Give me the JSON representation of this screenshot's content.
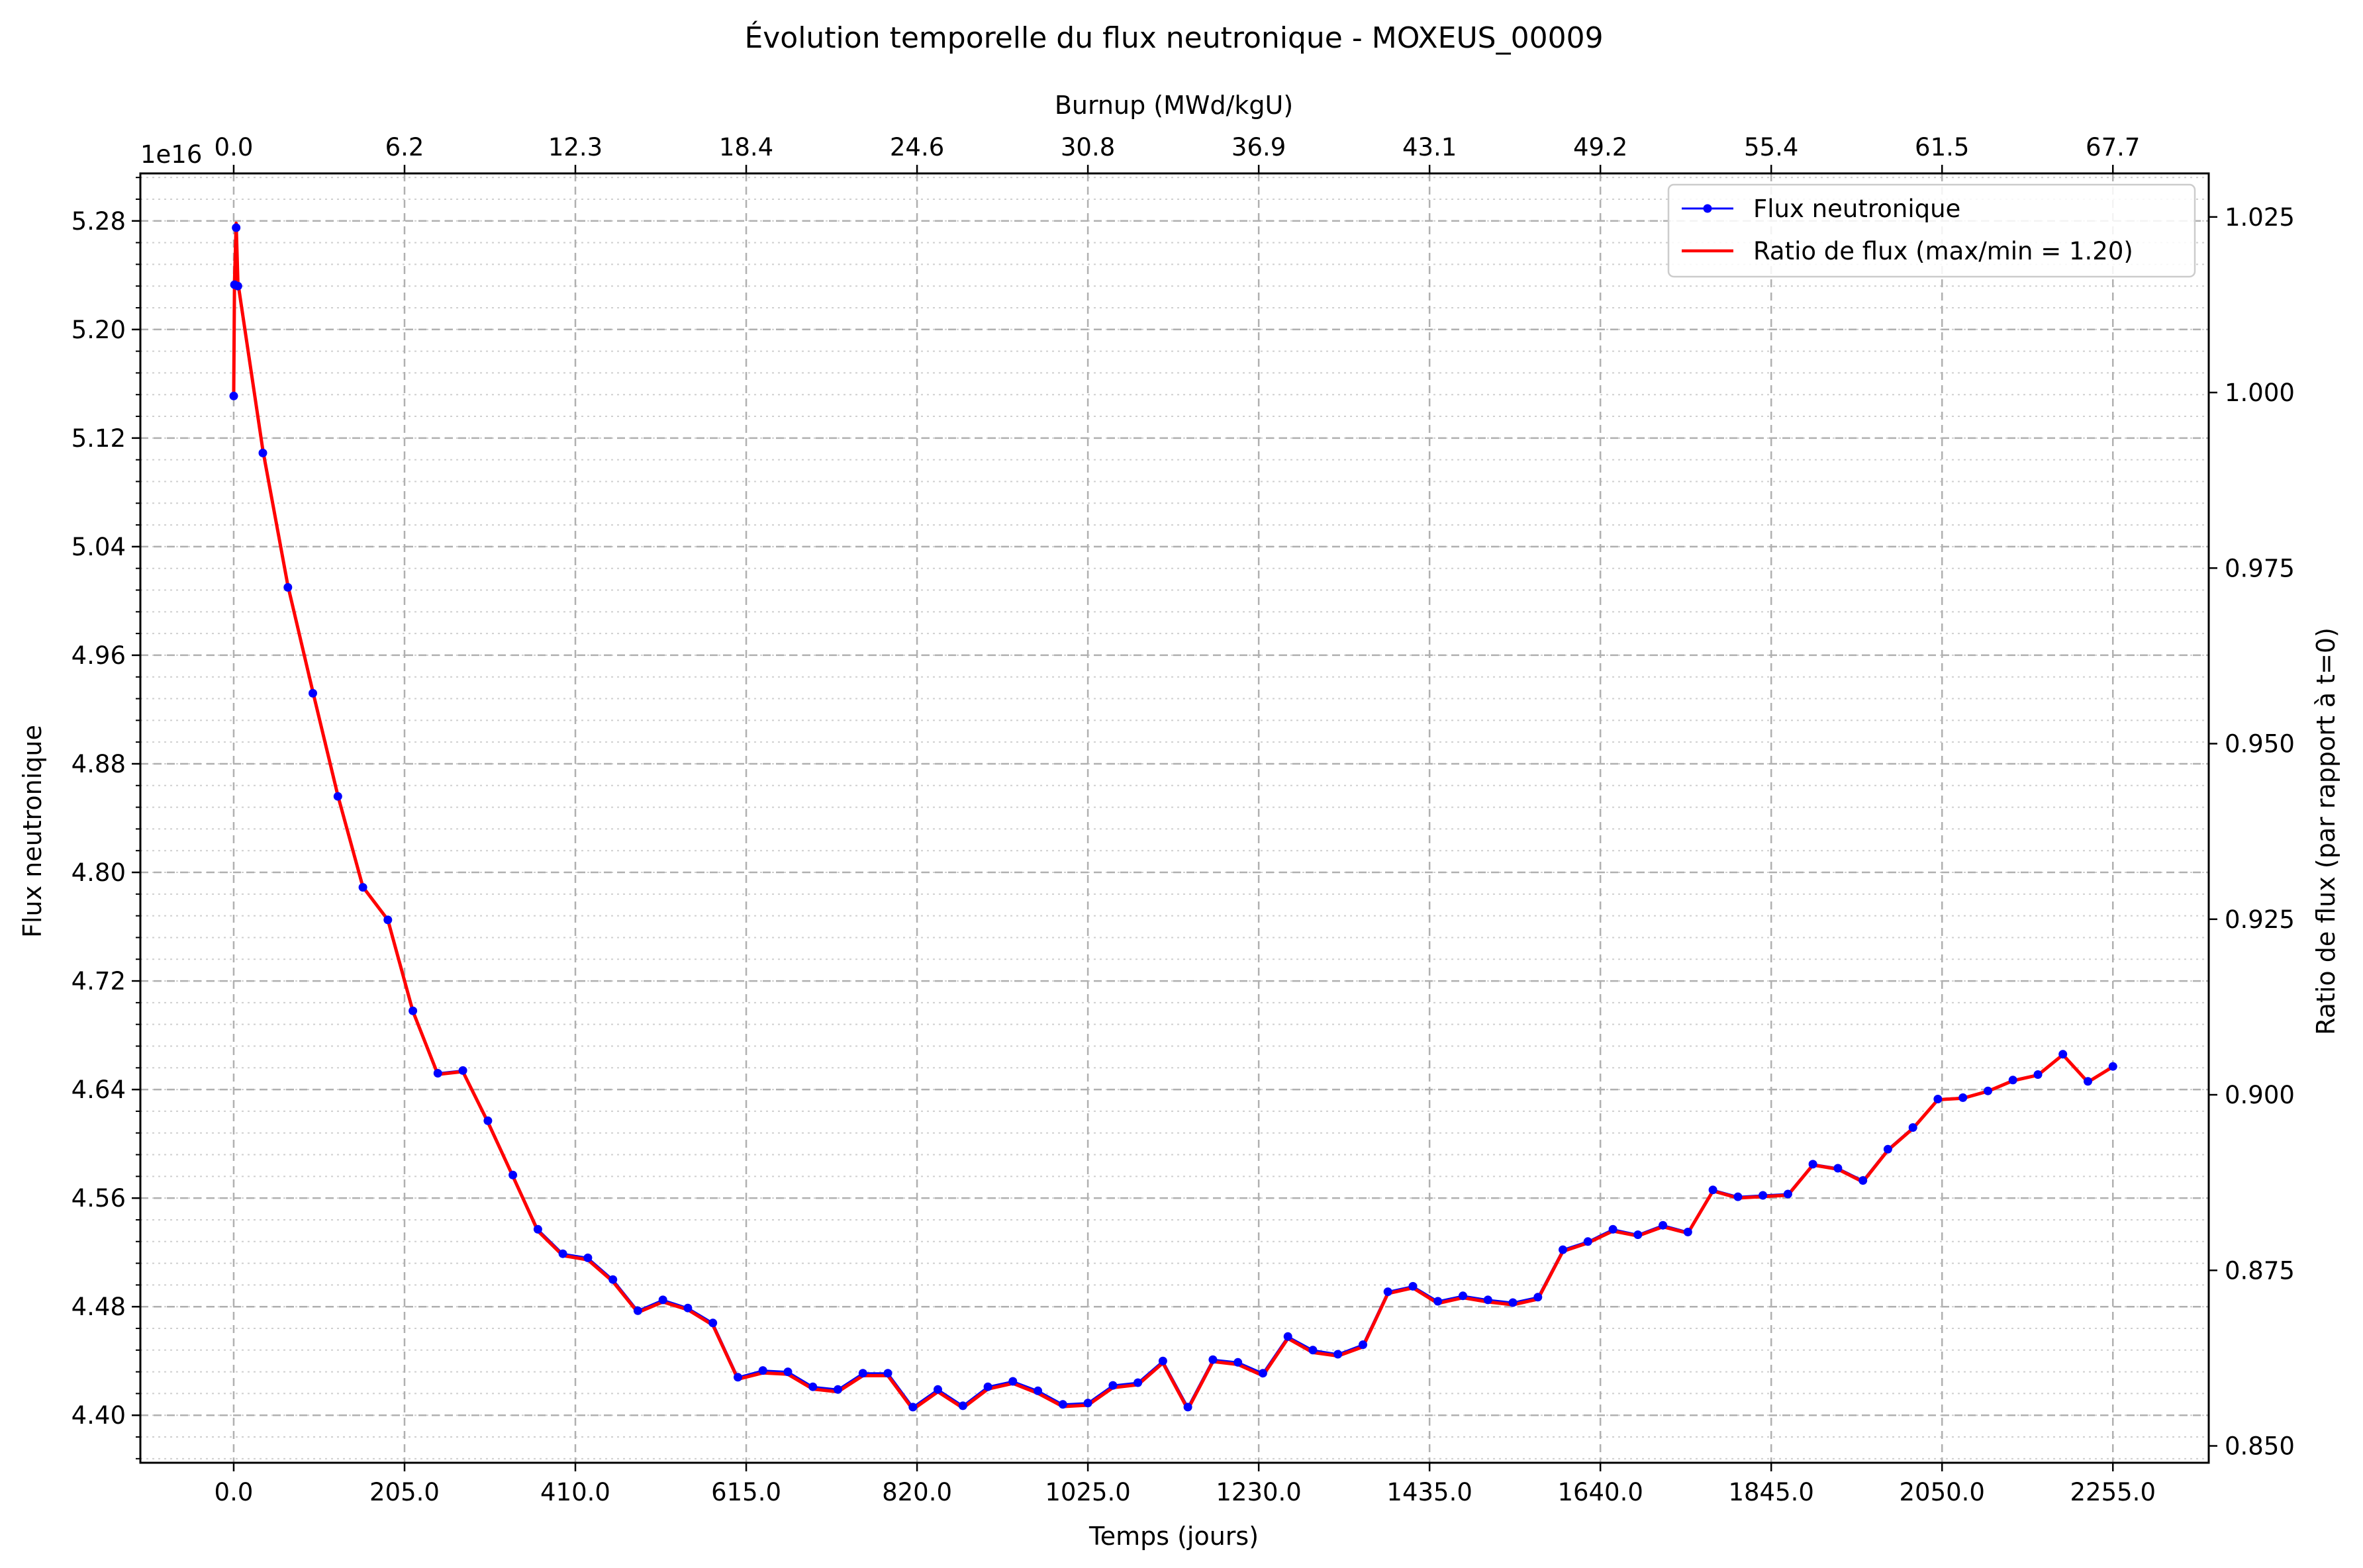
{
  "chart_data": {
    "type": "line",
    "title": "Évolution temporelle du flux neutronique - MOXEUS_00009",
    "xlabel": "Temps (jours)",
    "ylabel": "Flux neutronique",
    "y_offset_label": "1e16",
    "y2label": "Ratio de flux (par rapport à t=0)",
    "top_xlabel": "Burnup (MWd/kgU)",
    "xlim": [
      -112,
      2370
    ],
    "ylim": [
      4.365,
      5.315
    ],
    "y2lim": [
      0.8476,
      1.0312
    ],
    "x_ticks": [
      "0.0",
      "205.0",
      "410.0",
      "615.0",
      "820.0",
      "1025.0",
      "1230.0",
      "1435.0",
      "1640.0",
      "1845.0",
      "2050.0",
      "2255.0"
    ],
    "x_tick_values": [
      0,
      205,
      410,
      615,
      820,
      1025,
      1230,
      1435,
      1640,
      1845,
      2050,
      2255
    ],
    "top_ticks": [
      "0.0",
      "6.2",
      "12.3",
      "18.4",
      "24.6",
      "30.8",
      "36.9",
      "43.1",
      "49.2",
      "55.4",
      "61.5",
      "67.7"
    ],
    "y_ticks": [
      "4.40",
      "4.48",
      "4.56",
      "4.64",
      "4.72",
      "4.80",
      "4.88",
      "4.96",
      "5.04",
      "5.12",
      "5.20",
      "5.28"
    ],
    "y_tick_values": [
      4.4,
      4.48,
      4.56,
      4.64,
      4.72,
      4.8,
      4.88,
      4.96,
      5.04,
      5.12,
      5.2,
      5.28
    ],
    "y2_ticks": [
      "0.850",
      "0.875",
      "0.900",
      "0.925",
      "0.950",
      "0.975",
      "1.000",
      "1.025"
    ],
    "y2_tick_values": [
      0.85,
      0.875,
      0.9,
      0.925,
      0.95,
      0.975,
      1.0,
      1.025
    ],
    "grid": true,
    "legend_position": "top-right",
    "series": [
      {
        "name": "Flux neutronique",
        "color": "#0000ff",
        "marker": "circle",
        "x": [
          0,
          1,
          3,
          5,
          35,
          65,
          95,
          125,
          155,
          185,
          215,
          245,
          275,
          305,
          335,
          365,
          395,
          425,
          455,
          485,
          515,
          545,
          575,
          605,
          635,
          665,
          695,
          725,
          755,
          785,
          815,
          845,
          875,
          905,
          935,
          965,
          995,
          1025,
          1055,
          1085,
          1115,
          1145,
          1175,
          1205,
          1235,
          1265,
          1295,
          1325,
          1355,
          1385,
          1415,
          1445,
          1475,
          1505,
          1535,
          1565,
          1595,
          1625,
          1655,
          1685,
          1715,
          1745,
          1775,
          1805,
          1835,
          1865,
          1895,
          1925,
          1955,
          1985,
          2015,
          2045,
          2075,
          2105,
          2135,
          2165,
          2195,
          2225,
          2255
        ],
        "values": [
          5.151,
          5.233,
          5.275,
          5.232,
          5.109,
          5.01,
          4.932,
          4.856,
          4.789,
          4.765,
          4.698,
          4.652,
          4.654,
          4.617,
          4.577,
          4.537,
          4.519,
          4.516,
          4.5,
          4.477,
          4.485,
          4.479,
          4.468,
          4.428,
          4.433,
          4.432,
          4.421,
          4.419,
          4.431,
          4.431,
          4.406,
          4.419,
          4.407,
          4.421,
          4.425,
          4.418,
          4.408,
          4.409,
          4.422,
          4.424,
          4.44,
          4.406,
          4.441,
          4.439,
          4.431,
          4.458,
          4.448,
          4.445,
          4.452,
          4.491,
          4.495,
          4.484,
          4.488,
          4.485,
          4.483,
          4.487,
          4.522,
          4.528,
          4.537,
          4.533,
          4.54,
          4.535,
          4.566,
          4.561,
          4.562,
          4.563,
          4.585,
          4.582,
          4.573,
          4.596,
          4.612,
          4.633,
          4.634,
          4.639,
          4.647,
          4.651,
          4.666,
          4.646,
          4.657
        ]
      },
      {
        "name": "Ratio de flux (max/min = 1.20)",
        "color": "#ff0000",
        "axis": "right",
        "x": [
          0,
          1,
          3,
          5,
          35,
          65,
          95,
          125,
          155,
          185,
          215,
          245,
          275,
          305,
          335,
          365,
          395,
          425,
          455,
          485,
          515,
          545,
          575,
          605,
          635,
          665,
          695,
          725,
          755,
          785,
          815,
          845,
          875,
          905,
          935,
          965,
          995,
          1025,
          1055,
          1085,
          1115,
          1145,
          1175,
          1205,
          1235,
          1265,
          1295,
          1325,
          1355,
          1385,
          1415,
          1445,
          1475,
          1505,
          1535,
          1565,
          1595,
          1625,
          1655,
          1685,
          1715,
          1745,
          1775,
          1805,
          1835,
          1865,
          1895,
          1925,
          1955,
          1985,
          2015,
          2045,
          2075,
          2105,
          2135,
          2165,
          2195,
          2225,
          2255
        ],
        "values": [
          1.0,
          1.0159,
          1.0241,
          1.0157,
          0.9918,
          0.9725,
          0.9574,
          0.9426,
          0.9296,
          0.9249,
          0.9119,
          0.9029,
          0.9033,
          0.8961,
          0.8884,
          0.8806,
          0.8771,
          0.8765,
          0.8734,
          0.869,
          0.8705,
          0.8694,
          0.8672,
          0.8595,
          0.8604,
          0.8602,
          0.8581,
          0.8577,
          0.86,
          0.86,
          0.8552,
          0.8577,
          0.8554,
          0.8581,
          0.8589,
          0.8575,
          0.8556,
          0.8558,
          0.8583,
          0.8587,
          0.8618,
          0.8552,
          0.862,
          0.8616,
          0.86,
          0.8653,
          0.8633,
          0.8628,
          0.8641,
          0.8717,
          0.8725,
          0.8703,
          0.8711,
          0.8705,
          0.8701,
          0.8709,
          0.8777,
          0.8789,
          0.8806,
          0.8799,
          0.8812,
          0.8803,
          0.8863,
          0.8853,
          0.8855,
          0.8857,
          0.89,
          0.8894,
          0.8876,
          0.8921,
          0.8952,
          0.8993,
          0.8995,
          0.9005,
          0.902,
          0.9028,
          0.9057,
          0.9018,
          0.904
        ]
      }
    ]
  }
}
